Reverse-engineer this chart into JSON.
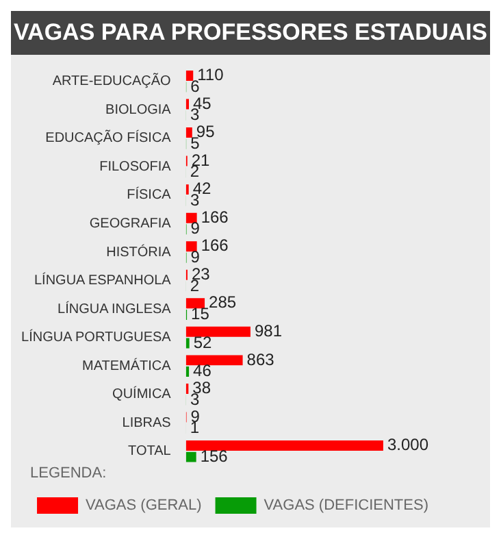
{
  "chart_data": {
    "type": "bar",
    "orientation": "horizontal",
    "title": "VAGAS PARA PROFESSORES ESTADUAIS",
    "legend_title": "LEGENDA:",
    "legend": "bottom",
    "grid": false,
    "tick_labels": "y",
    "categories": [
      "ARTE-EDUCAÇÃO",
      "BIOLOGIA",
      "EDUCAÇÃO FÍSICA",
      "FILOSOFIA",
      "FÍSICA",
      "GEOGRAFIA",
      "HISTÓRIA",
      "LÍNGUA ESPANHOLA",
      "LÍNGUA INGLESA",
      "LÍNGUA PORTUGUESA",
      "MATEMÁTICA",
      "QUÍMICA",
      "LIBRAS",
      "TOTAL"
    ],
    "series": [
      {
        "name": "VAGAS (GERAL)",
        "color": "#ff0000",
        "values": [
          110,
          45,
          95,
          21,
          42,
          166,
          166,
          23,
          285,
          981,
          863,
          38,
          9,
          3000
        ],
        "value_labels": [
          "110",
          "45",
          "95",
          "21",
          "42",
          "166",
          "166",
          "23",
          "285",
          "981",
          "863",
          "38",
          "9",
          "3.000"
        ]
      },
      {
        "name": "VAGAS (DEFICIENTES)",
        "color": "#079c07",
        "values": [
          6,
          3,
          5,
          2,
          3,
          9,
          9,
          2,
          15,
          52,
          46,
          3,
          1,
          156
        ],
        "value_labels": [
          "6",
          "3",
          "5",
          "2",
          "3",
          "9",
          "9",
          "2",
          "15",
          "52",
          "46",
          "3",
          "1",
          "156"
        ]
      }
    ]
  }
}
